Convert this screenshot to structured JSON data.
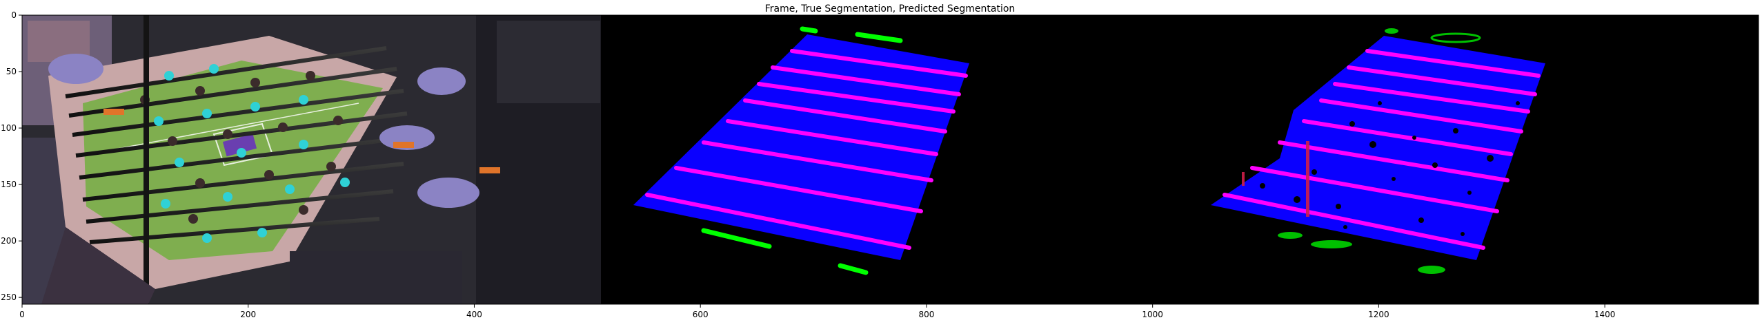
{
  "figure": {
    "title": "Frame, True Segmentation, Predicted Segmentation"
  },
  "axes": {
    "x_ticks": [
      "0",
      "200",
      "400",
      "600",
      "800",
      "1000",
      "1200",
      "1400"
    ],
    "x_tick_values": [
      0,
      200,
      400,
      600,
      800,
      1000,
      1200,
      1400
    ],
    "y_ticks": [
      "0",
      "50",
      "100",
      "150",
      "200",
      "250"
    ],
    "y_tick_values": [
      0,
      50,
      100,
      150,
      200,
      250
    ],
    "x_range": [
      0,
      1536
    ],
    "y_range": [
      0,
      256
    ]
  },
  "panels": [
    {
      "name": "frame",
      "x_range": [
        0,
        512
      ]
    },
    {
      "name": "true-segmentation",
      "x_range": [
        512,
        1024
      ]
    },
    {
      "name": "predicted-segmentation",
      "x_range": [
        1024,
        1536
      ]
    }
  ],
  "colors": {
    "table": "#0a00ff",
    "rods": "#ff00ff",
    "players": "#00ff00",
    "background": "#000000",
    "field_green": "#7fae4f"
  }
}
